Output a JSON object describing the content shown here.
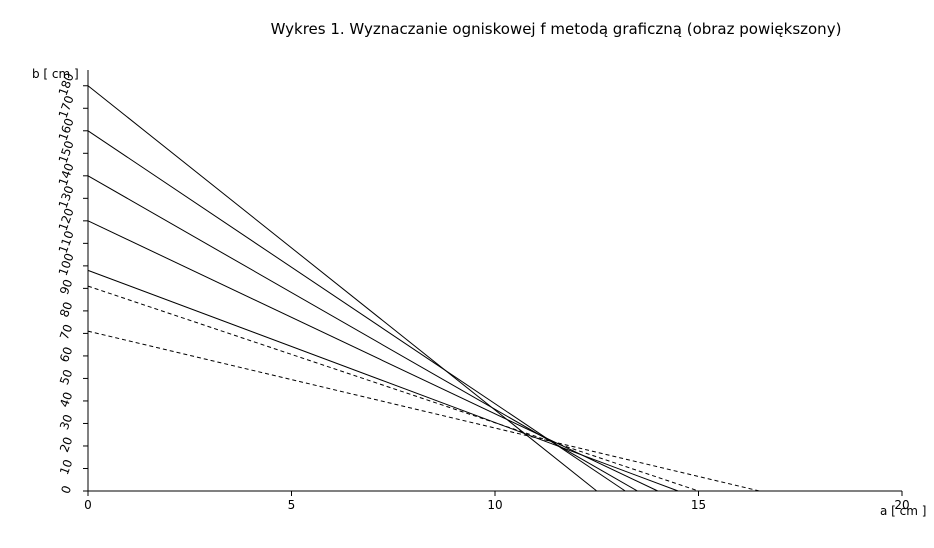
{
  "chart_data": {
    "type": "line",
    "title": "Wykres 1. Wyznaczanie ogniskowej f metodą graficzną (obraz powiększony)",
    "x_label": "a [ cm ]",
    "y_label": "b [ cm ]",
    "xlim": [
      0,
      20
    ],
    "ylim": [
      0,
      187
    ],
    "xticks": [
      0,
      5,
      10,
      15,
      20
    ],
    "yticks": [
      0,
      10,
      20,
      30,
      40,
      50,
      60,
      70,
      80,
      90,
      100,
      110,
      120,
      130,
      140,
      150,
      160,
      170,
      180
    ],
    "series": [
      {
        "color": "#000000",
        "dashed": false,
        "x": [
          0,
          12.5
        ],
        "values": [
          180,
          0
        ]
      },
      {
        "color": "#000000",
        "dashed": false,
        "x": [
          0,
          13.2
        ],
        "values": [
          160,
          0
        ]
      },
      {
        "color": "#000000",
        "dashed": false,
        "x": [
          0,
          13.5
        ],
        "values": [
          140,
          0
        ]
      },
      {
        "color": "#000000",
        "dashed": false,
        "x": [
          0,
          14
        ],
        "values": [
          120,
          0
        ]
      },
      {
        "color": "#000000",
        "dashed": false,
        "x": [
          0,
          14.5
        ],
        "values": [
          98,
          0
        ]
      },
      {
        "color": "#000000",
        "dashed": true,
        "x": [
          0,
          15
        ],
        "values": [
          91,
          0
        ]
      },
      {
        "color": "#000000",
        "dashed": true,
        "x": [
          0,
          16.5
        ],
        "values": [
          71,
          0
        ]
      }
    ]
  }
}
